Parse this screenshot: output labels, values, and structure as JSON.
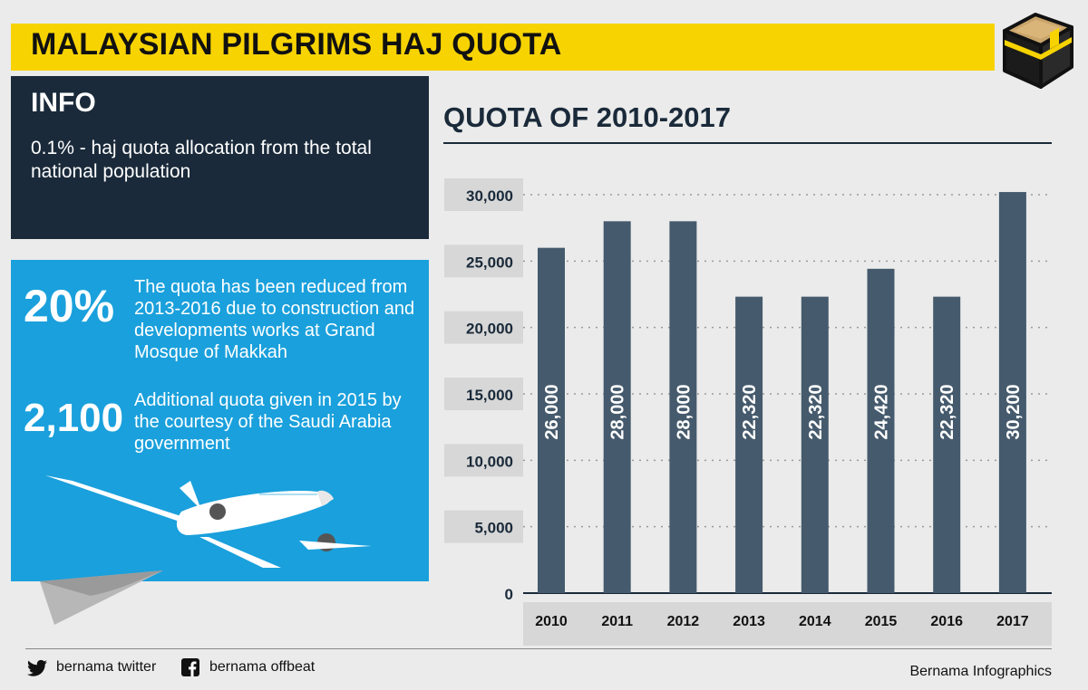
{
  "title": "MALAYSIAN PILGRIMS HAJ QUOTA",
  "info": {
    "heading": "INFO",
    "text": "0.1% -  haj quota allocation from the total national population"
  },
  "stats": [
    {
      "value": "20%",
      "text": "The quota has been reduced from 2013-2016 due to construction and developments works at Grand Mosque of Makkah"
    },
    {
      "value": "2,100",
      "text": "Additional quota given in 2015 by the courtesy of the Saudi Arabia government"
    }
  ],
  "chart_data": {
    "type": "bar",
    "title": "QUOTA OF 2010-2017",
    "categories": [
      "2010",
      "2011",
      "2012",
      "2013",
      "2014",
      "2015",
      "2016",
      "2017"
    ],
    "values": [
      26000,
      28000,
      28000,
      22320,
      22320,
      24420,
      22320,
      30200
    ],
    "value_labels": [
      "26,000",
      "28,000",
      "28,000",
      "22,320",
      "22,320",
      "24,420",
      "22,320",
      "30,200"
    ],
    "yticks": [
      0,
      5000,
      10000,
      15000,
      20000,
      25000,
      30000
    ],
    "ytick_labels": [
      "0",
      "5,000",
      "10,000",
      "15,000",
      "20,000",
      "25,000",
      "30,000"
    ],
    "ylim": [
      0,
      30000
    ],
    "xlabel": "",
    "ylabel": "",
    "bar_color": "#455a6c",
    "grid": true
  },
  "footer": {
    "twitter": "bernama twitter",
    "facebook": "bernama offbeat",
    "credit": "Bernama Infographics"
  },
  "colors": {
    "yellow": "#f7d301",
    "navy": "#1a2a3a",
    "blue": "#1aa0dc",
    "bar": "#455a6c"
  }
}
